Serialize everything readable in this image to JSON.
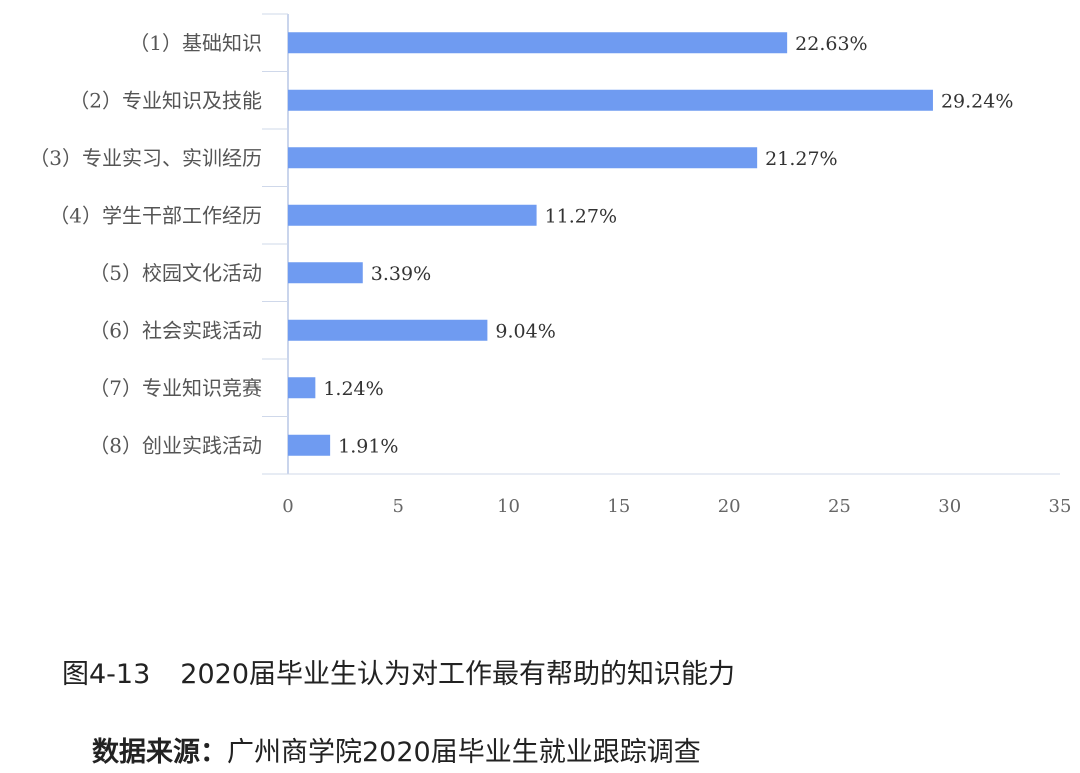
{
  "chart_data": {
    "type": "bar",
    "orientation": "horizontal",
    "categories": [
      "（1）基础知识",
      "（2）专业知识及技能",
      "（3）专业实习、实训经历",
      "（4）学生干部工作经历",
      "（5）校园文化活动",
      "（6）社会实践活动",
      "（7）专业知识竞赛",
      "（8）创业实践活动"
    ],
    "values": [
      22.63,
      29.24,
      21.27,
      11.27,
      3.39,
      9.04,
      1.24,
      1.91
    ],
    "value_labels": [
      "22.63%",
      "29.24%",
      "21.27%",
      "11.27%",
      "3.39%",
      "9.04%",
      "1.24%",
      "1.91%"
    ],
    "xlim": [
      0,
      35
    ],
    "xticks": [
      "0",
      "5",
      "10",
      "15",
      "20",
      "25",
      "30",
      "35"
    ],
    "grid": false,
    "legend": "none",
    "bar_color": "#6f9bf1"
  },
  "caption": {
    "number": "图4-13",
    "text": "2020届毕业生认为对工作最有帮助的知识能力"
  },
  "source": {
    "label": "数据来源：",
    "text": "广州商学院2020届毕业生就业跟踪调查"
  }
}
